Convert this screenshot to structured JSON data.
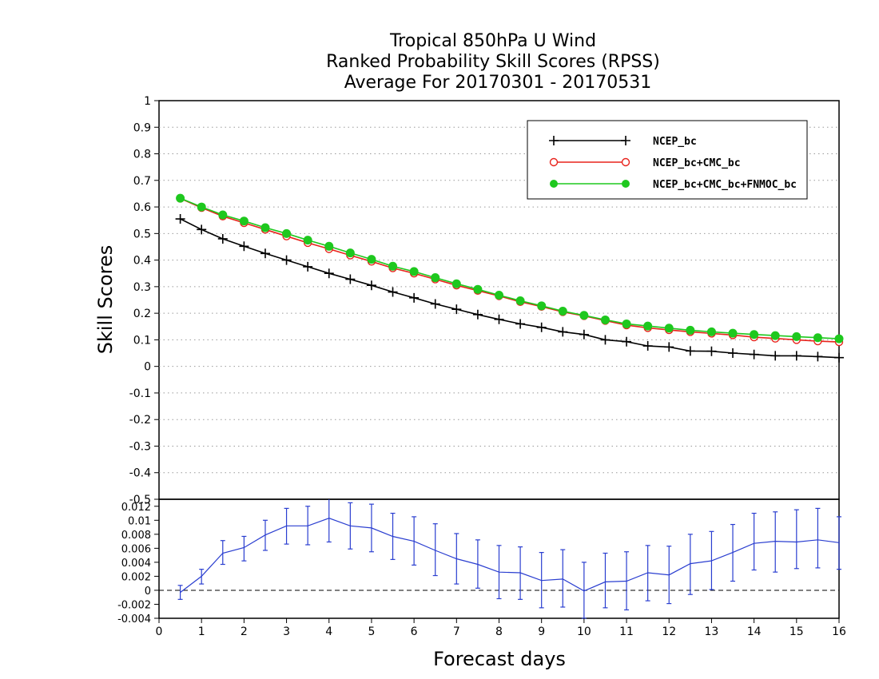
{
  "chart_data": [
    {
      "type": "line",
      "title": [
        "Tropical 850hPa U Wind",
        "Ranked Probability Skill Scores (RPSS)",
        "Average For 20170301 - 20170531"
      ],
      "ylabel": "Skill Scores",
      "xlabel": "Forecast days",
      "xlim": [
        0,
        16
      ],
      "ylim": [
        -0.5,
        1
      ],
      "yticks": [
        "1",
        "0.9",
        "0.8",
        "0.7",
        "0.6",
        "0.5",
        "0.4",
        "0.3",
        "0.2",
        "0.1",
        "0",
        "-0.1",
        "-0.2",
        "-0.3",
        "-0.4",
        "-0.5"
      ],
      "xticks": [
        "0",
        "1",
        "2",
        "3",
        "4",
        "5",
        "6",
        "7",
        "8",
        "9",
        "10",
        "11",
        "12",
        "13",
        "14",
        "15",
        "16"
      ],
      "grid": true,
      "legend_position": "top-right",
      "x": [
        0.5,
        1,
        1.5,
        2,
        2.5,
        3,
        3.5,
        4,
        4.5,
        5,
        5.5,
        6,
        6.5,
        7,
        7.5,
        8,
        8.5,
        9,
        9.5,
        10,
        10.5,
        11,
        11.5,
        12,
        12.5,
        13,
        13.5,
        14,
        14.5,
        15,
        15.5,
        16
      ],
      "series": [
        {
          "name": "NCEP_bc",
          "color": "#000000",
          "marker": "plus",
          "values": [
            0.555,
            0.515,
            0.48,
            0.452,
            0.425,
            0.4,
            0.375,
            0.35,
            0.328,
            0.305,
            0.28,
            0.258,
            0.235,
            0.215,
            0.195,
            0.177,
            0.16,
            0.147,
            0.13,
            0.12,
            0.1,
            0.093,
            0.077,
            0.073,
            0.058,
            0.057,
            0.05,
            0.045,
            0.04,
            0.04,
            0.037,
            0.033
          ]
        },
        {
          "name": "NCEP_bc+CMC_bc",
          "color": "#e8231c",
          "marker": "open-circle",
          "values": [
            0.632,
            0.597,
            0.565,
            0.54,
            0.515,
            0.49,
            0.465,
            0.442,
            0.418,
            0.395,
            0.37,
            0.35,
            0.328,
            0.305,
            0.285,
            0.265,
            0.243,
            0.225,
            0.205,
            0.19,
            0.172,
            0.155,
            0.145,
            0.137,
            0.13,
            0.124,
            0.118,
            0.11,
            0.105,
            0.1,
            0.095,
            0.092
          ]
        },
        {
          "name": "NCEP_bc+CMC_bc+FNMOC_bc",
          "color": "#1ec81e",
          "marker": "filled-circle",
          "values": [
            0.633,
            0.6,
            0.57,
            0.547,
            0.522,
            0.5,
            0.475,
            0.452,
            0.427,
            0.403,
            0.377,
            0.357,
            0.334,
            0.311,
            0.29,
            0.268,
            0.247,
            0.228,
            0.208,
            0.192,
            0.175,
            0.16,
            0.152,
            0.144,
            0.136,
            0.13,
            0.125,
            0.12,
            0.116,
            0.112,
            0.108,
            0.104
          ]
        }
      ]
    },
    {
      "type": "line",
      "xlabel": "Forecast days",
      "xlim": [
        0,
        16
      ],
      "ylim": [
        -0.004,
        0.013
      ],
      "yticks": [
        "0.012",
        "0.01",
        "0.008",
        "0.006",
        "0.004",
        "0.002",
        "0",
        "-0.002",
        "-0.004"
      ],
      "xticks": [
        "0",
        "1",
        "2",
        "3",
        "4",
        "5",
        "6",
        "7",
        "8",
        "9",
        "10",
        "11",
        "12",
        "13",
        "14",
        "15",
        "16"
      ],
      "x": [
        0.5,
        1,
        1.5,
        2,
        2.5,
        3,
        3.5,
        4,
        4.5,
        5,
        5.5,
        6,
        6.5,
        7,
        7.5,
        8,
        8.5,
        9,
        9.5,
        10,
        10.5,
        11,
        11.5,
        12,
        12.5,
        13,
        13.5,
        14,
        14.5,
        15,
        15.5,
        16
      ],
      "series": [
        {
          "color": "#2a3ed0",
          "values": [
            -0.0003,
            0.002,
            0.0053,
            0.0061,
            0.0079,
            0.0092,
            0.0092,
            0.0103,
            0.0092,
            0.0089,
            0.0077,
            0.007,
            0.0057,
            0.0045,
            0.0037,
            0.0026,
            0.0025,
            0.0014,
            0.0016,
            -0.0001,
            0.0012,
            0.0013,
            0.0025,
            0.0022,
            0.0038,
            0.0042,
            0.0054,
            0.0067,
            0.007,
            0.0069,
            0.0072,
            0.0068
          ],
          "error_low": [
            -0.0013,
            0.0009,
            0.0037,
            0.0042,
            0.0057,
            0.0066,
            0.0065,
            0.0069,
            0.0059,
            0.0055,
            0.0044,
            0.0036,
            0.0021,
            0.0009,
            0.0003,
            -0.0012,
            -0.0013,
            -0.0025,
            -0.0024,
            -0.004,
            -0.0025,
            -0.0028,
            -0.0015,
            -0.0019,
            -0.0006,
            0.0001,
            0.0013,
            0.0029,
            0.0026,
            0.0031,
            0.0032,
            0.003
          ],
          "error_high": [
            0.0007,
            0.003,
            0.0071,
            0.0077,
            0.01,
            0.0117,
            0.012,
            0.0135,
            0.0125,
            0.0123,
            0.011,
            0.0105,
            0.0095,
            0.0081,
            0.0072,
            0.0064,
            0.0062,
            0.0054,
            0.0058,
            0.004,
            0.0053,
            0.0055,
            0.0064,
            0.0063,
            0.008,
            0.0084,
            0.0094,
            0.011,
            0.0112,
            0.0115,
            0.0117,
            0.0105
          ]
        }
      ]
    }
  ]
}
